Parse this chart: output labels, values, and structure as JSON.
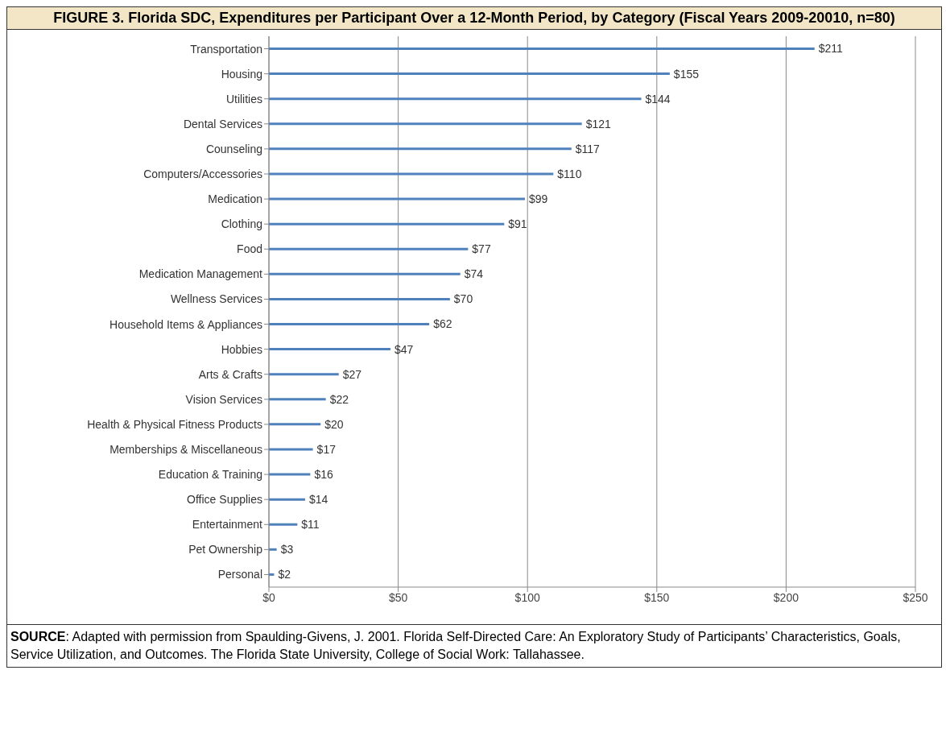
{
  "chart_data": {
    "type": "bar",
    "orientation": "horizontal",
    "title": "FIGURE 3. Florida SDC, Expenditures per Participant Over a 12-Month Period, by Category (Fiscal Years 2009-20010, n=80)",
    "categories": [
      "Transportation",
      "Housing",
      "Utilities",
      "Dental Services",
      "Counseling",
      "Computers/Accessories",
      "Medication",
      "Clothing",
      "Food",
      "Medication Management",
      "Wellness Services",
      "Household Items & Appliances",
      "Hobbies",
      "Arts & Crafts",
      "Vision Services",
      "Health & Physical Fitness Products",
      "Memberships & Miscellaneous",
      "Education & Training",
      "Office Supplies",
      "Entertainment",
      "Pet Ownership",
      "Personal"
    ],
    "values": [
      211,
      155,
      144,
      121,
      117,
      110,
      99,
      91,
      77,
      74,
      70,
      62,
      47,
      27,
      22,
      20,
      17,
      16,
      14,
      11,
      3,
      2
    ],
    "value_labels": [
      "$211",
      "$155",
      "$144",
      "$121",
      "$117",
      "$110",
      "$99",
      "$91",
      "$77",
      "$74",
      "$70",
      "$62",
      "$47",
      "$27",
      "$22",
      "$20",
      "$17",
      "$16",
      "$14",
      "$11",
      "$3",
      "$2"
    ],
    "color": "#4f81bd",
    "xlim": [
      0,
      250
    ],
    "xticks": [
      {
        "value": 0,
        "label": "$0"
      },
      {
        "value": 50,
        "label": "$50"
      },
      {
        "value": 100,
        "label": "$100"
      },
      {
        "value": 150,
        "label": "$150"
      },
      {
        "value": 200,
        "label": "$200"
      },
      {
        "value": 250,
        "label": "$250"
      }
    ],
    "grid": "x",
    "annotations": [
      "SOURCE: Adapted with permission from Spaulding-Givens, J. 2001. Florida Self-Directed Care: An Exploratory Study of Participants’ Characteristics, Goals, Service Utilization, and Outcomes. The Florida State University, College of Social Work: Tallahassee."
    ]
  }
}
